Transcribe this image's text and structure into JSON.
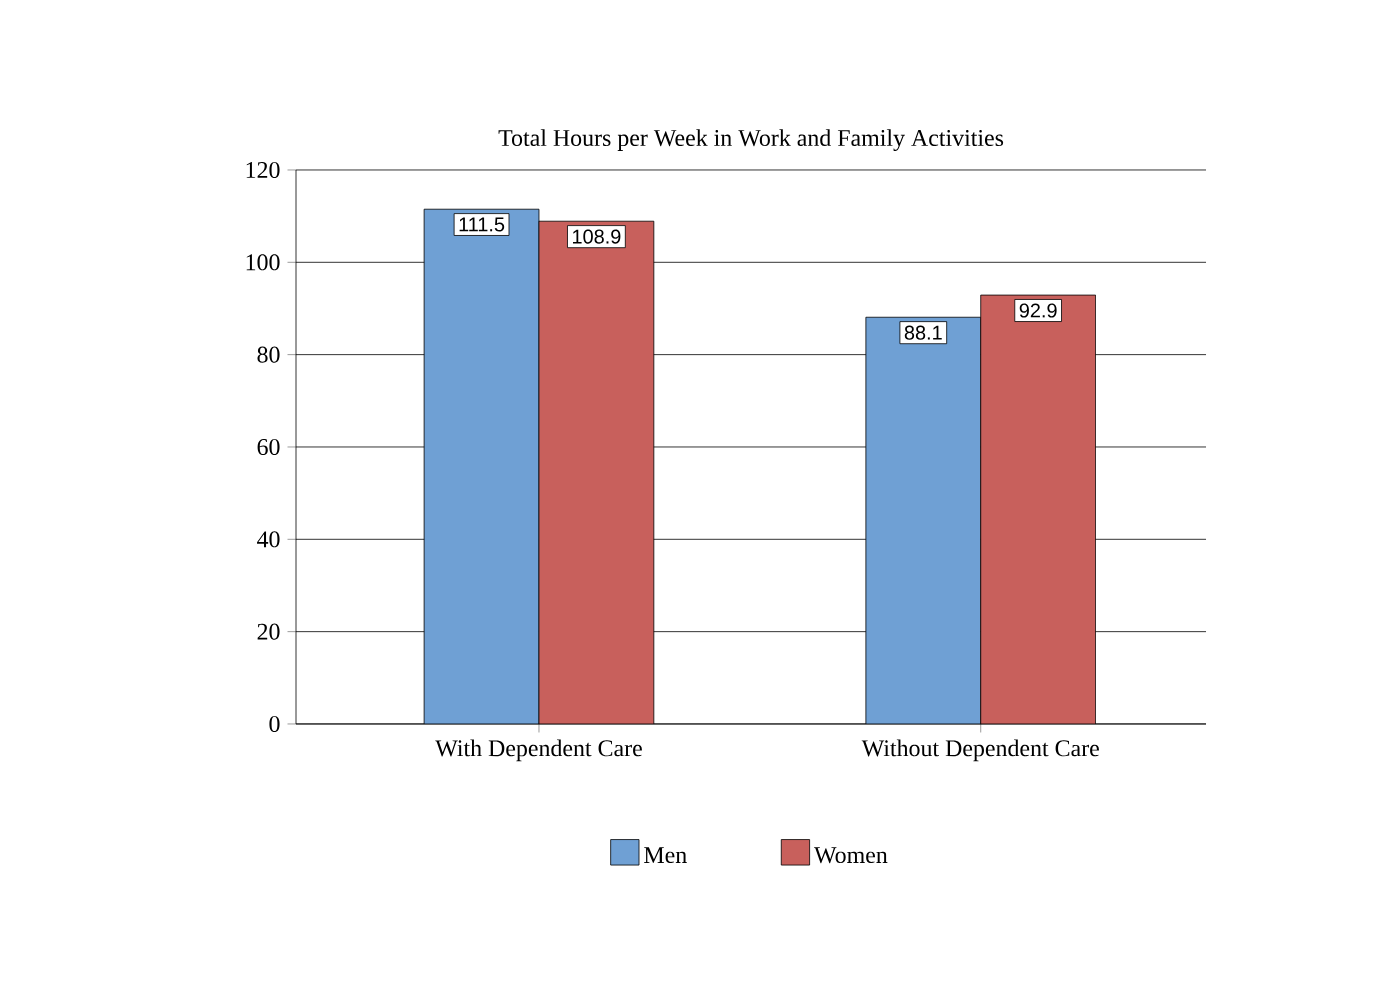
{
  "chart_data": {
    "type": "bar",
    "title": "Total Hours per Week in Work and Family Activities",
    "categories": [
      "With Dependent Care",
      "Without Dependent Care"
    ],
    "series": [
      {
        "name": "Men",
        "color": "#6fa0d4",
        "values": [
          111.5,
          88.1
        ]
      },
      {
        "name": "Women",
        "color": "#c8605c",
        "values": [
          108.9,
          92.9
        ]
      }
    ],
    "ylim": [
      0,
      120
    ],
    "yticks": [
      0,
      20,
      40,
      60,
      80,
      100,
      120
    ],
    "grid": "y",
    "legend": "bottom",
    "data_labels": true
  }
}
